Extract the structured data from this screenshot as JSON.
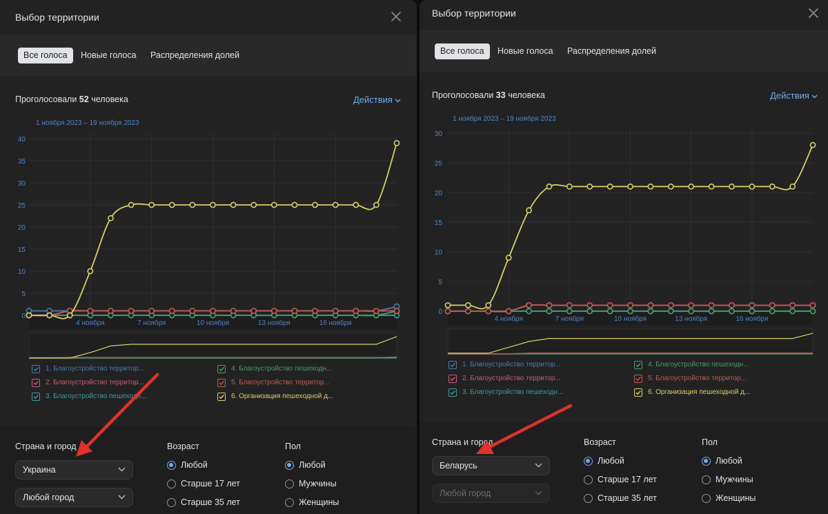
{
  "panels": [
    {
      "title": "Выбор территории",
      "tabs": [
        "Все голоса",
        "Новые голоса",
        "Распределения долей"
      ],
      "voted_prefix": "Проголосовали",
      "voted_count": "52",
      "voted_suffix": "человека",
      "actions_label": "Действия",
      "filters": {
        "country_city_label": "Страна и город",
        "country_value": "Украина",
        "city_value": "Любой город",
        "city_disabled": false,
        "age_label": "Возраст",
        "age_options": [
          "Любой",
          "Старше 17 лет",
          "Старше 35 лет"
        ],
        "age_selected": 0,
        "gender_label": "Пол",
        "gender_options": [
          "Любой",
          "Мужчины",
          "Женщины"
        ],
        "gender_selected": 0
      }
    },
    {
      "title": "Выбор территории",
      "tabs": [
        "Все голоса",
        "Новые голоса",
        "Распределения долей"
      ],
      "voted_prefix": "Проголосовали",
      "voted_count": "33",
      "voted_suffix": "человека",
      "actions_label": "Действия",
      "filters": {
        "country_city_label": "Страна и город",
        "country_value": "Беларусь",
        "city_value": "Любой город",
        "city_disabled": true,
        "age_label": "Возраст",
        "age_options": [
          "Любой",
          "Старше 17 лет",
          "Старше 35 лет"
        ],
        "age_selected": 0,
        "gender_label": "Пол",
        "gender_options": [
          "Любой",
          "Мужчины",
          "Женщины"
        ],
        "gender_selected": 0
      }
    }
  ],
  "colors": {
    "accent": "#71aaeb",
    "arrow": "#e0322a",
    "series": [
      "#4d79ad",
      "#cc5a7a",
      "#3e9e9e",
      "#4b9a6a",
      "#c45a4f",
      "#d6d26a"
    ]
  },
  "chart_data": [
    {
      "type": "line",
      "date_range": "1 ноября 2023 – 19 ноября 2023",
      "x": [
        "1 ноября",
        "2 ноября",
        "3 ноября",
        "4 ноября",
        "5 ноября",
        "6 ноября",
        "7 ноября",
        "8 ноября",
        "9 ноября",
        "10 ноября",
        "11 ноября",
        "12 ноября",
        "13 ноября",
        "14 ноября",
        "15 ноября",
        "16 ноября",
        "17 ноября",
        "18 ноября",
        "19 ноября"
      ],
      "x_ticks": [
        "4 ноября",
        "7 ноября",
        "10 ноября",
        "13 ноября",
        "16 ноября"
      ],
      "y_ticks": [
        0,
        5,
        10,
        15,
        20,
        25,
        30,
        35,
        40
      ],
      "ylim": [
        0,
        40
      ],
      "grid": true,
      "series": [
        {
          "name": "1. Благоустройство территор...",
          "values": [
            1,
            1,
            1,
            1,
            1,
            1,
            1,
            1,
            1,
            1,
            1,
            1,
            1,
            1,
            1,
            1,
            1,
            1,
            2
          ]
        },
        {
          "name": "2. Благоустройство территор...",
          "values": [
            0,
            0,
            1,
            1,
            1,
            1,
            1,
            1,
            1,
            1,
            1,
            1,
            1,
            1,
            1,
            1,
            1,
            1,
            1
          ]
        },
        {
          "name": "3. Благоустройство пешеходн...",
          "values": [
            0,
            0,
            0,
            0,
            0,
            0,
            0,
            0,
            0,
            0,
            0,
            0,
            0,
            0,
            0,
            0,
            0,
            0,
            0
          ]
        },
        {
          "name": "4. Благоустройство пешеходн...",
          "values": [
            0,
            0,
            0,
            0,
            0,
            0,
            0,
            0,
            0,
            0,
            0,
            0,
            0,
            0,
            0,
            0,
            0,
            0,
            1
          ]
        },
        {
          "name": "5. Благоустройство территор...",
          "values": [
            0,
            0,
            1,
            1,
            1,
            1,
            1,
            1,
            1,
            1,
            1,
            1,
            1,
            1,
            1,
            1,
            1,
            1,
            1
          ]
        },
        {
          "name": "6. Организация пешеходной д...",
          "values": [
            0,
            0,
            0,
            10,
            22,
            25,
            25,
            25,
            25,
            25,
            25,
            25,
            25,
            25,
            25,
            25,
            25,
            25,
            39
          ]
        }
      ]
    },
    {
      "type": "line",
      "date_range": "1 ноября 2023 – 19 ноября 2023",
      "x": [
        "1 ноября",
        "2 ноября",
        "3 ноября",
        "4 ноября",
        "5 ноября",
        "6 ноября",
        "7 ноября",
        "8 ноября",
        "9 ноября",
        "10 ноября",
        "11 ноября",
        "12 ноября",
        "13 ноября",
        "14 ноября",
        "15 ноября",
        "16 ноября",
        "17 ноября",
        "18 ноября",
        "19 ноября"
      ],
      "x_ticks": [
        "4 ноября",
        "7 ноября",
        "10 ноября",
        "13 ноября",
        "16 ноября"
      ],
      "y_ticks": [
        0,
        5,
        10,
        15,
        20,
        25,
        30
      ],
      "ylim": [
        0,
        30
      ],
      "grid": true,
      "series": [
        {
          "name": "1. Благоустройство территор...",
          "values": [
            0,
            0,
            0,
            0,
            1,
            1,
            1,
            1,
            1,
            1,
            1,
            1,
            1,
            1,
            1,
            1,
            1,
            1,
            1
          ]
        },
        {
          "name": "2. Благоустройство территор...",
          "values": [
            0,
            0,
            0,
            0,
            1,
            1,
            1,
            1,
            1,
            1,
            1,
            1,
            1,
            1,
            1,
            1,
            1,
            1,
            1
          ]
        },
        {
          "name": "3. Благоустройство пешеходн...",
          "values": [
            0,
            0,
            0,
            0,
            0,
            0,
            0,
            0,
            0,
            0,
            0,
            0,
            0,
            0,
            0,
            0,
            0,
            0,
            0
          ]
        },
        {
          "name": "4. Благоустройство пешеходн...",
          "values": [
            0,
            0,
            0,
            0,
            0,
            0,
            0,
            0,
            0,
            0,
            0,
            0,
            0,
            0,
            0,
            0,
            0,
            0,
            0
          ]
        },
        {
          "name": "5. Благоустройство территор...",
          "values": [
            0,
            0,
            0,
            0,
            1,
            1,
            1,
            1,
            1,
            1,
            1,
            1,
            1,
            1,
            1,
            1,
            1,
            1,
            1
          ]
        },
        {
          "name": "6. Организация пешеходной д...",
          "values": [
            1,
            1,
            1,
            9,
            17,
            21,
            21,
            21,
            21,
            21,
            21,
            21,
            21,
            21,
            21,
            21,
            21,
            21,
            28
          ]
        }
      ]
    }
  ]
}
